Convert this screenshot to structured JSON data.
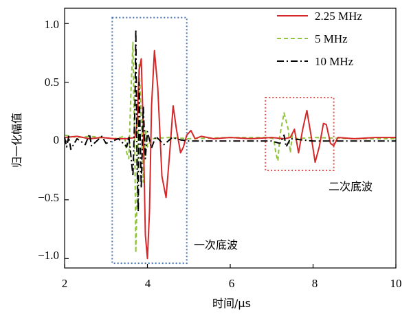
{
  "chart_data": {
    "type": "line",
    "xlabel": "时间/μs",
    "ylabel": "归一化幅值",
    "xlim": [
      2,
      10
    ],
    "ylim": [
      -1.08,
      1.13
    ],
    "x_ticks": [
      "2",
      "4",
      "6",
      "8",
      "10"
    ],
    "y_ticks": [
      "1.0",
      "0.5",
      "0",
      "−0.5",
      "−1.0"
    ],
    "grid": false,
    "legend_position": "top-right",
    "series": [
      {
        "name": "2.25 MHz",
        "color": "#d62728",
        "style": "solid",
        "points": [
          [
            2.0,
            0.03
          ],
          [
            2.3,
            0.04
          ],
          [
            2.6,
            0.02
          ],
          [
            2.9,
            0.03
          ],
          [
            3.2,
            0.02
          ],
          [
            3.5,
            0.02
          ],
          [
            3.7,
            0.03
          ],
          [
            3.75,
            0.15
          ],
          [
            3.8,
            0.6
          ],
          [
            3.85,
            0.7
          ],
          [
            3.9,
            0.1
          ],
          [
            3.95,
            -0.8
          ],
          [
            4.0,
            -1.0
          ],
          [
            4.05,
            -0.6
          ],
          [
            4.1,
            0.3
          ],
          [
            4.17,
            0.77
          ],
          [
            4.25,
            0.45
          ],
          [
            4.35,
            -0.3
          ],
          [
            4.45,
            -0.48
          ],
          [
            4.55,
            -0.05
          ],
          [
            4.62,
            0.3
          ],
          [
            4.7,
            0.1
          ],
          [
            4.8,
            -0.1
          ],
          [
            4.87,
            -0.05
          ],
          [
            4.95,
            0.05
          ],
          [
            5.05,
            0.09
          ],
          [
            5.15,
            0.02
          ],
          [
            5.3,
            0.04
          ],
          [
            5.6,
            0.02
          ],
          [
            6.0,
            0.03
          ],
          [
            6.5,
            0.02
          ],
          [
            7.0,
            0.03
          ],
          [
            7.3,
            0.02
          ],
          [
            7.45,
            0.03
          ],
          [
            7.55,
            0.1
          ],
          [
            7.65,
            -0.1
          ],
          [
            7.75,
            0.1
          ],
          [
            7.85,
            0.26
          ],
          [
            7.95,
            0.05
          ],
          [
            8.05,
            -0.18
          ],
          [
            8.15,
            -0.05
          ],
          [
            8.25,
            0.15
          ],
          [
            8.32,
            0.14
          ],
          [
            8.42,
            -0.02
          ],
          [
            8.5,
            -0.04
          ],
          [
            8.6,
            0.03
          ],
          [
            9.0,
            0.02
          ],
          [
            9.5,
            0.03
          ],
          [
            10.0,
            0.03
          ]
        ]
      },
      {
        "name": "5 MHz",
        "color": "#8fc43b",
        "style": "dashed",
        "points": [
          [
            2.0,
            0.05
          ],
          [
            2.3,
            0.03
          ],
          [
            2.6,
            0.04
          ],
          [
            2.9,
            0.03
          ],
          [
            3.2,
            0.02
          ],
          [
            3.45,
            0.04
          ],
          [
            3.5,
            -0.1
          ],
          [
            3.55,
            -0.15
          ],
          [
            3.6,
            0.4
          ],
          [
            3.65,
            0.84
          ],
          [
            3.7,
            -0.2
          ],
          [
            3.72,
            -0.95
          ],
          [
            3.75,
            -0.5
          ],
          [
            3.8,
            0.65
          ],
          [
            3.85,
            0.2
          ],
          [
            3.9,
            -0.35
          ],
          [
            3.95,
            0.1
          ],
          [
            4.0,
            -0.05
          ],
          [
            4.1,
            0.02
          ],
          [
            4.5,
            0.03
          ],
          [
            5.0,
            0.02
          ],
          [
            6.0,
            0.03
          ],
          [
            6.9,
            0.03
          ],
          [
            7.05,
            0.02
          ],
          [
            7.1,
            -0.1
          ],
          [
            7.15,
            -0.17
          ],
          [
            7.2,
            0.05
          ],
          [
            7.3,
            0.24
          ],
          [
            7.4,
            0.1
          ],
          [
            7.45,
            -0.1
          ],
          [
            7.5,
            0.05
          ],
          [
            7.6,
            0.02
          ],
          [
            8.0,
            0.03
          ],
          [
            9.0,
            0.02
          ],
          [
            10.0,
            0.02
          ]
        ]
      },
      {
        "name": "10 MHz",
        "color": "#000000",
        "style": "dashdot",
        "points": [
          [
            2.0,
            0.03
          ],
          [
            2.05,
            -0.05
          ],
          [
            2.1,
            0.04
          ],
          [
            2.15,
            -0.07
          ],
          [
            2.3,
            0.02
          ],
          [
            2.5,
            -0.03
          ],
          [
            2.6,
            0.06
          ],
          [
            2.65,
            -0.04
          ],
          [
            2.9,
            0.04
          ],
          [
            3.0,
            -0.02
          ],
          [
            3.3,
            0.02
          ],
          [
            3.5,
            -0.05
          ],
          [
            3.55,
            0.04
          ],
          [
            3.6,
            -0.12
          ],
          [
            3.65,
            -0.3
          ],
          [
            3.7,
            0.3
          ],
          [
            3.72,
            0.95
          ],
          [
            3.75,
            -0.2
          ],
          [
            3.78,
            -0.6
          ],
          [
            3.8,
            0.5
          ],
          [
            3.85,
            -0.4
          ],
          [
            3.9,
            0.3
          ],
          [
            3.95,
            -0.15
          ],
          [
            4.0,
            0.08
          ],
          [
            4.1,
            -0.06
          ],
          [
            4.2,
            0.04
          ],
          [
            4.4,
            -0.03
          ],
          [
            4.6,
            0.03
          ],
          [
            4.8,
            0.01
          ],
          [
            5.0,
            0.0
          ],
          [
            6.0,
            0.0
          ],
          [
            7.0,
            0.0
          ],
          [
            7.2,
            -0.02
          ],
          [
            7.3,
            0.05
          ],
          [
            7.35,
            -0.05
          ],
          [
            7.45,
            0.02
          ],
          [
            8.0,
            0.0
          ],
          [
            9.0,
            0.0
          ],
          [
            10.0,
            0.0
          ]
        ]
      }
    ],
    "annotations": [
      {
        "label": "一次底波",
        "box": {
          "x0": 3.15,
          "x1": 4.95,
          "y0": -1.04,
          "y1": 1.05
        },
        "color": "#4a78b8"
      },
      {
        "label": "二次底波",
        "box": {
          "x0": 6.85,
          "x1": 8.5,
          "y0": -0.25,
          "y1": 0.37
        },
        "color": "#e45050"
      }
    ]
  }
}
